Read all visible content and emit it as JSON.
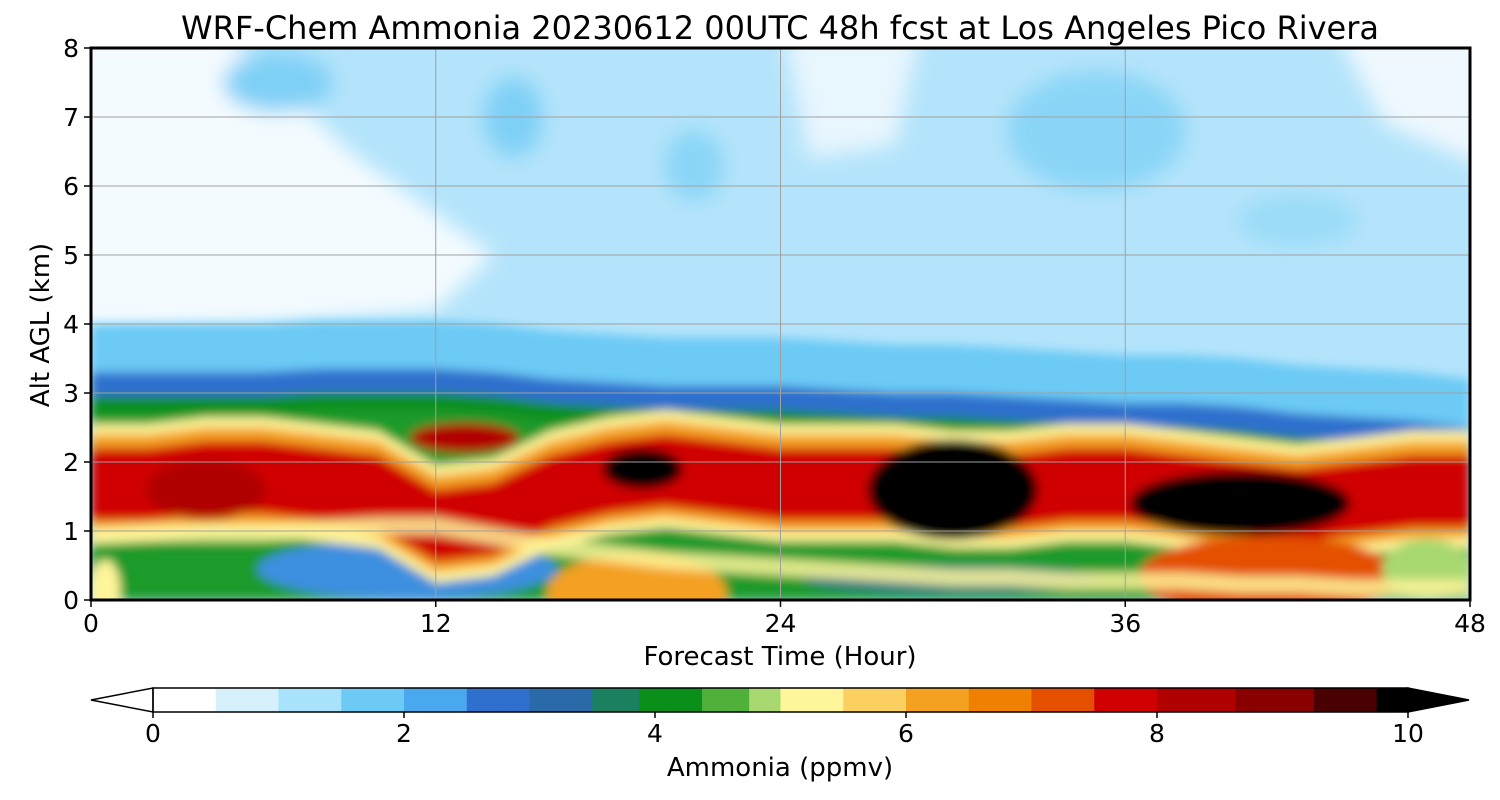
{
  "chart_data": {
    "type": "heatmap",
    "title": "WRF-Chem Ammonia  20230612 00UTC 48h fcst at Los Angeles Pico Rivera",
    "xlabel": "Forecast Time (Hour)",
    "ylabel": "Alt AGL (km)",
    "xlim": [
      0,
      48
    ],
    "ylim": [
      0,
      8
    ],
    "x_ticks": [
      "0",
      "12",
      "24",
      "36",
      "48"
    ],
    "y_ticks": [
      "0",
      "1",
      "2",
      "3",
      "4",
      "5",
      "6",
      "7",
      "8"
    ],
    "grid": true,
    "colorbar": {
      "label": "Ammonia  (ppmv)",
      "range": [
        0,
        10
      ],
      "ticks": [
        "0",
        "2",
        "4",
        "6",
        "8",
        "10"
      ],
      "extend": "both",
      "stops": [
        {
          "v": 0,
          "c": "#ffffff"
        },
        {
          "v": 0.5,
          "c": "#d6f0fc"
        },
        {
          "v": 1.0,
          "c": "#a8e2fb"
        },
        {
          "v": 1.5,
          "c": "#6ccaf5"
        },
        {
          "v": 2.0,
          "c": "#4aa8ee"
        },
        {
          "v": 2.5,
          "c": "#2f6fcd"
        },
        {
          "v": 3.0,
          "c": "#2a6aa8"
        },
        {
          "v": 3.4,
          "c": "#1a8060"
        },
        {
          "v": 3.8,
          "c": "#0a8f1a"
        },
        {
          "v": 4.3,
          "c": "#4fb03a"
        },
        {
          "v": 4.7,
          "c": "#a8d870"
        },
        {
          "v": 5.0,
          "c": "#fff59a"
        },
        {
          "v": 5.5,
          "c": "#fcd060"
        },
        {
          "v": 6.0,
          "c": "#f4a020"
        },
        {
          "v": 6.5,
          "c": "#f08000"
        },
        {
          "v": 7.0,
          "c": "#e45000"
        },
        {
          "v": 7.5,
          "c": "#d00000"
        },
        {
          "v": 8.0,
          "c": "#b00000"
        },
        {
          "v": 8.6,
          "c": "#8a0000"
        },
        {
          "v": 9.2,
          "c": "#4a0000"
        },
        {
          "v": 9.7,
          "c": "#000000"
        },
        {
          "v": 10,
          "c": "#000000"
        }
      ]
    },
    "bands": [
      {
        "name": "lower",
        "hours": [
          0,
          2,
          4,
          6,
          8,
          10,
          12,
          14,
          16,
          18,
          20,
          22,
          24,
          26,
          28,
          30,
          32,
          34,
          36,
          38,
          40,
          42,
          44,
          46,
          48
        ],
        "km": [
          0.95,
          1.0,
          1.0,
          1.0,
          1.05,
          1.1,
          1.1,
          0.95,
          0.8,
          0.7,
          0.6,
          0.55,
          0.5,
          0.45,
          0.4,
          0.35,
          0.35,
          0.3,
          0.3,
          0.3,
          0.25,
          0.25,
          0.2,
          0.2,
          0.2
        ]
      },
      {
        "name": "core",
        "hours": [
          0,
          2,
          4,
          6,
          8,
          10,
          12,
          14,
          16,
          18,
          20,
          22,
          24,
          26,
          28,
          30,
          32,
          34,
          36,
          38,
          40,
          42,
          44,
          46,
          48
        ],
        "km": [
          1.6,
          1.6,
          1.7,
          1.7,
          1.6,
          1.5,
          1.0,
          1.1,
          1.5,
          1.7,
          1.8,
          1.7,
          1.6,
          1.6,
          1.6,
          1.5,
          1.5,
          1.6,
          1.6,
          1.5,
          1.4,
          1.3,
          1.4,
          1.5,
          1.5
        ]
      },
      {
        "name": "cap",
        "hours": [
          0,
          2,
          4,
          6,
          8,
          10,
          12,
          14,
          16,
          18,
          20,
          22,
          24,
          26,
          28,
          30,
          32,
          34,
          36,
          38,
          40,
          42,
          44,
          46,
          48
        ],
        "km": [
          3.0,
          3.0,
          3.0,
          3.0,
          3.05,
          3.05,
          3.05,
          3.0,
          2.9,
          2.85,
          2.8,
          2.8,
          2.8,
          2.75,
          2.7,
          2.7,
          2.65,
          2.6,
          2.55,
          2.55,
          2.5,
          2.4,
          2.35,
          2.3,
          2.2
        ]
      }
    ]
  }
}
